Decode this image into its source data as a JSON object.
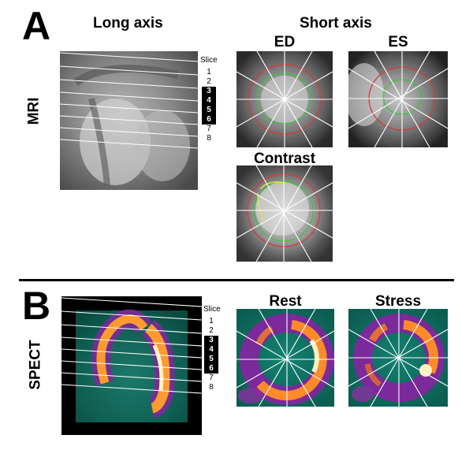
{
  "panel_a": {
    "letter": "A",
    "row_label": "MRI",
    "long_axis_title": "Long axis",
    "short_axis_title": "Short axis",
    "slice_title": "Slice",
    "slices": [
      "1",
      "2",
      "3",
      "4",
      "5",
      "6",
      "7",
      "8"
    ],
    "highlighted_slices": [
      "3",
      "4",
      "5",
      "6"
    ],
    "ed_title": "ED",
    "es_title": "ES",
    "contrast_title": "Contrast"
  },
  "panel_b": {
    "letter": "B",
    "row_label": "SPECT",
    "slice_title": "Slice",
    "slices": [
      "1",
      "2",
      "3",
      "4",
      "5",
      "6",
      "7",
      "8"
    ],
    "highlighted_slices": [
      "3",
      "4",
      "5",
      "6"
    ],
    "rest_title": "Rest",
    "stress_title": "Stress"
  },
  "colors": {
    "contour_red": "#d43a3a",
    "contour_green": "#39c23a",
    "contour_yellow": "#e6e43a",
    "spect_bg": "#0e6a5e",
    "spect_hot": "#ffe9a0",
    "divider": "#000000"
  }
}
